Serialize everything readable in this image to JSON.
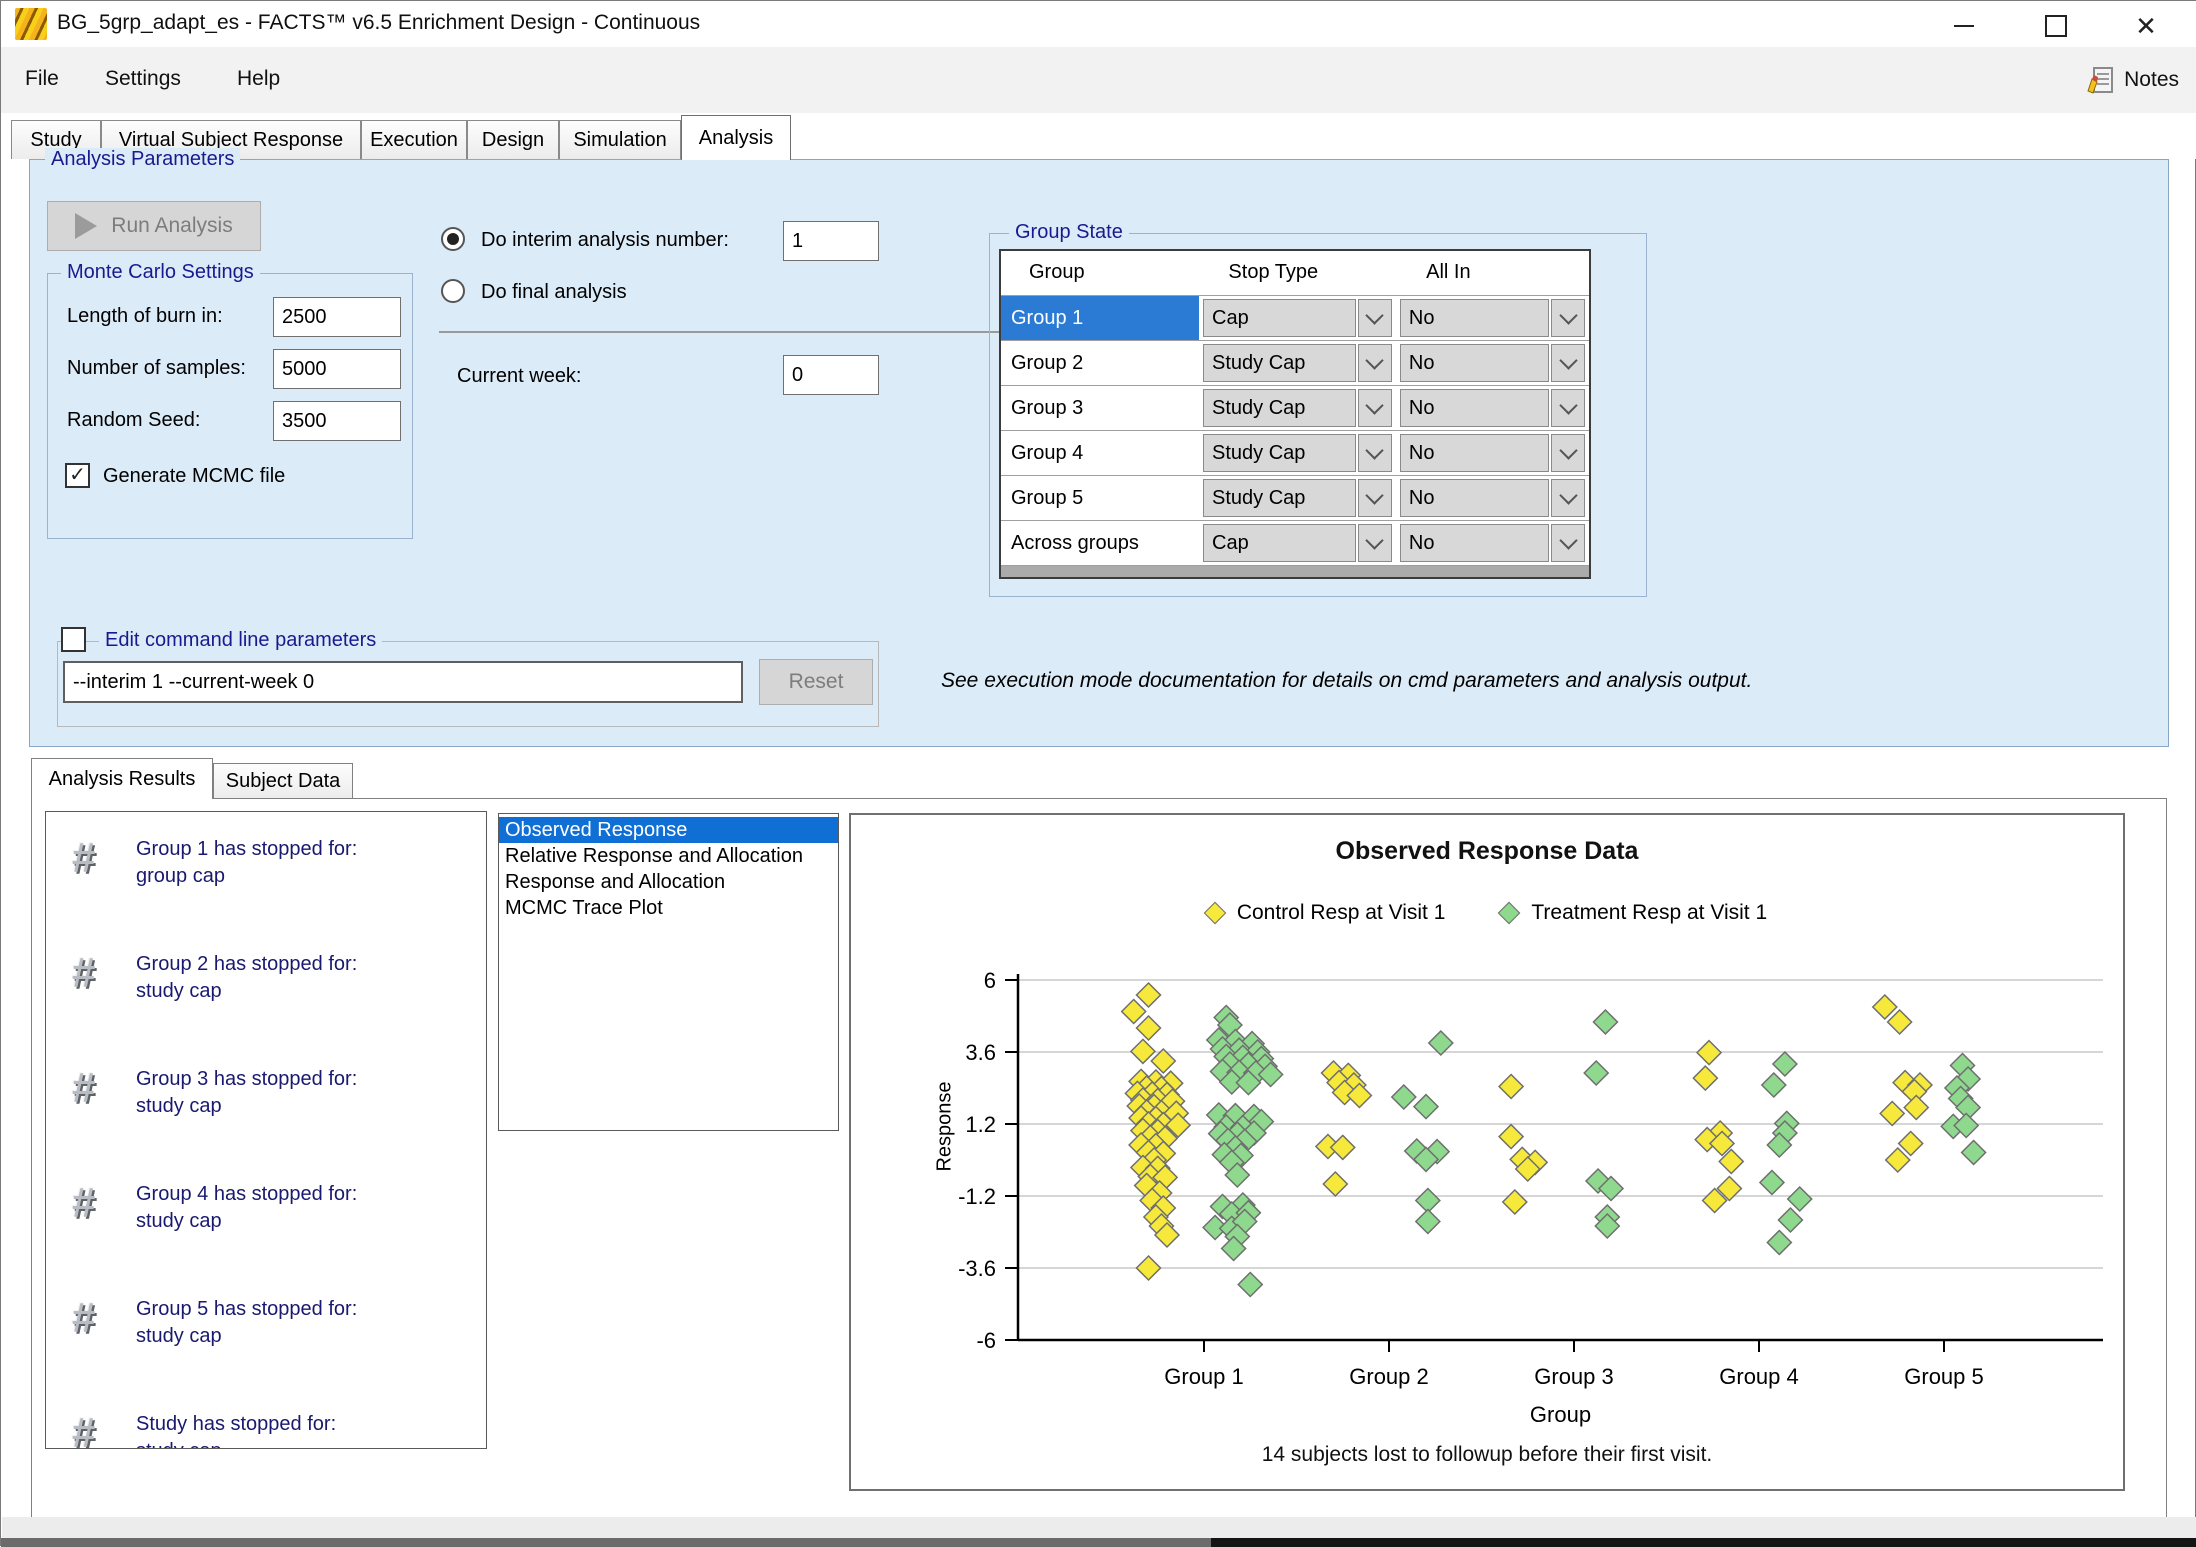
{
  "window": {
    "title": "BG_5grp_adapt_es - FACTS™ v6.5 Enrichment Design - Continuous"
  },
  "menu": {
    "items": [
      "File",
      "Settings",
      "Help"
    ],
    "notes_label": "Notes"
  },
  "tabs": [
    "Study",
    "Virtual Subject Response",
    "Execution",
    "Design",
    "Simulation",
    "Analysis"
  ],
  "analysis_parameters": {
    "caption": "Analysis Parameters",
    "run_button": "Run Analysis",
    "monte_carlo": {
      "caption": "Monte Carlo Settings",
      "burn_in_label": "Length of burn in:",
      "burn_in": "2500",
      "samples_label": "Number of samples:",
      "samples": "5000",
      "seed_label": "Random Seed:",
      "seed": "3500",
      "mcmc_checkbox_label": "Generate MCMC file",
      "mcmc_checked": "true"
    },
    "interim_radio_label": "Do interim analysis number:",
    "interim_value": "1",
    "final_radio_label": "Do final analysis",
    "current_week_label": "Current week:",
    "current_week": "0",
    "group_state": {
      "caption": "Group State",
      "columns": [
        "Group",
        "Stop Type",
        "All In"
      ],
      "rows": [
        {
          "group": "Group 1",
          "stop_type": "Cap",
          "all_in": "No"
        },
        {
          "group": "Group 2",
          "stop_type": "Study Cap",
          "all_in": "No"
        },
        {
          "group": "Group 3",
          "stop_type": "Study Cap",
          "all_in": "No"
        },
        {
          "group": "Group 4",
          "stop_type": "Study Cap",
          "all_in": "No"
        },
        {
          "group": "Group 5",
          "stop_type": "Study Cap",
          "all_in": "No"
        },
        {
          "group": "Across groups",
          "stop_type": "Cap",
          "all_in": "No"
        }
      ],
      "selected_row": "Group 1"
    },
    "cmd": {
      "caption": "Edit command line parameters",
      "value": "--interim 1 --current-week 0",
      "reset_button": "Reset",
      "note": "See execution mode documentation for details on cmd parameters and analysis output."
    }
  },
  "results": {
    "tabs": [
      "Analysis Results",
      "Subject Data"
    ],
    "messages": [
      {
        "line1": "Group 1 has stopped for:",
        "line2": "group cap"
      },
      {
        "line1": "Group 2 has stopped for:",
        "line2": "study cap"
      },
      {
        "line1": "Group 3 has stopped for:",
        "line2": "study cap"
      },
      {
        "line1": "Group 4 has stopped for:",
        "line2": "study cap"
      },
      {
        "line1": "Group 5 has stopped for:",
        "line2": "study cap"
      },
      {
        "line1": "Study has stopped for:",
        "line2": "study cap"
      }
    ],
    "plot_list": [
      "Observed Response",
      "Relative Response and Allocation",
      "Response and Allocation",
      "MCMC Trace Plot"
    ],
    "selected_plot": "Observed Response"
  },
  "chart_data": {
    "type": "scatter",
    "title": "Observed Response Data",
    "xlabel": "Group",
    "ylabel": "Response",
    "ylim": [
      -6,
      6
    ],
    "yticks": [
      6,
      3.6,
      1.2,
      -1.2,
      -3.6,
      -6
    ],
    "categories": [
      "Group 1",
      "Group 2",
      "Group 3",
      "Group 4",
      "Group 5"
    ],
    "grid": true,
    "legend_position": "top",
    "footnote": "14 subjects lost to followup before their first visit.",
    "marker": "diamond",
    "series": [
      {
        "name": "Control Resp at Visit 1",
        "color": "#f6e93c",
        "points": [
          [
            1,
            -0.3,
            5.5
          ],
          [
            1,
            -0.38,
            4.95
          ],
          [
            1,
            -0.3,
            4.4
          ],
          [
            1,
            -0.33,
            3.62
          ],
          [
            1,
            -0.22,
            3.3
          ],
          [
            1,
            -0.34,
            2.62
          ],
          [
            1,
            -0.26,
            2.6
          ],
          [
            1,
            -0.18,
            2.56
          ],
          [
            1,
            -0.31,
            2.4
          ],
          [
            1,
            -0.23,
            2.38
          ],
          [
            1,
            -0.36,
            2.22
          ],
          [
            1,
            -0.28,
            2.2
          ],
          [
            1,
            -0.2,
            2.18
          ],
          [
            1,
            -0.33,
            2.0
          ],
          [
            1,
            -0.25,
            1.98
          ],
          [
            1,
            -0.17,
            1.96
          ],
          [
            1,
            -0.35,
            1.8
          ],
          [
            1,
            -0.27,
            1.78
          ],
          [
            1,
            -0.31,
            1.6
          ],
          [
            1,
            -0.23,
            1.58
          ],
          [
            1,
            -0.15,
            1.56
          ],
          [
            1,
            -0.34,
            1.4
          ],
          [
            1,
            -0.26,
            1.38
          ],
          [
            1,
            -0.3,
            1.2
          ],
          [
            1,
            -0.22,
            1.18
          ],
          [
            1,
            -0.14,
            1.16
          ],
          [
            1,
            -0.33,
            0.98
          ],
          [
            1,
            -0.25,
            0.95
          ],
          [
            1,
            -0.29,
            0.75
          ],
          [
            1,
            -0.21,
            0.72
          ],
          [
            1,
            -0.34,
            0.5
          ],
          [
            1,
            -0.26,
            0.48
          ],
          [
            1,
            -0.3,
            0.25
          ],
          [
            1,
            -0.22,
            0.22
          ],
          [
            1,
            -0.27,
            0.0
          ],
          [
            1,
            -0.33,
            -0.25
          ],
          [
            1,
            -0.25,
            -0.28
          ],
          [
            1,
            -0.29,
            -0.55
          ],
          [
            1,
            -0.21,
            -0.58
          ],
          [
            1,
            -0.31,
            -0.85
          ],
          [
            1,
            -0.24,
            -1.1
          ],
          [
            1,
            -0.28,
            -1.35
          ],
          [
            1,
            -0.22,
            -1.6
          ],
          [
            1,
            -0.26,
            -1.9
          ],
          [
            1,
            -0.23,
            -2.2
          ],
          [
            1,
            -0.2,
            -2.5
          ],
          [
            1,
            -0.3,
            -3.6
          ],
          [
            2,
            -0.3,
            2.9
          ],
          [
            2,
            -0.22,
            2.82
          ],
          [
            2,
            -0.27,
            2.58
          ],
          [
            2,
            -0.19,
            2.5
          ],
          [
            2,
            -0.24,
            2.25
          ],
          [
            2,
            -0.16,
            2.15
          ],
          [
            2,
            -0.33,
            0.45
          ],
          [
            2,
            -0.25,
            0.42
          ],
          [
            2,
            -0.29,
            -0.8
          ],
          [
            3,
            -0.34,
            2.45
          ],
          [
            3,
            -0.34,
            0.78
          ],
          [
            3,
            -0.28,
            0.02
          ],
          [
            3,
            -0.21,
            -0.08
          ],
          [
            3,
            -0.25,
            -0.3
          ],
          [
            3,
            -0.32,
            -1.4
          ],
          [
            4,
            -0.27,
            3.58
          ],
          [
            4,
            -0.29,
            2.73
          ],
          [
            4,
            -0.21,
            0.9
          ],
          [
            4,
            -0.28,
            0.68
          ],
          [
            4,
            -0.2,
            0.55
          ],
          [
            4,
            -0.15,
            -0.05
          ],
          [
            4,
            -0.16,
            -0.95
          ],
          [
            4,
            -0.24,
            -1.35
          ],
          [
            5,
            -0.32,
            5.1
          ],
          [
            5,
            -0.24,
            4.6
          ],
          [
            5,
            -0.21,
            2.58
          ],
          [
            5,
            -0.13,
            2.5
          ],
          [
            5,
            -0.16,
            2.28
          ],
          [
            5,
            -0.28,
            1.55
          ],
          [
            5,
            -0.15,
            1.75
          ],
          [
            5,
            -0.18,
            0.55
          ],
          [
            5,
            -0.25,
            0.0
          ]
        ]
      },
      {
        "name": "Treatment Resp at Visit 1",
        "color": "#8ed98e",
        "points": [
          [
            1,
            0.12,
            4.75
          ],
          [
            1,
            0.14,
            4.5
          ],
          [
            1,
            0.08,
            4.0
          ],
          [
            1,
            0.17,
            3.95
          ],
          [
            1,
            0.26,
            3.88
          ],
          [
            1,
            0.1,
            3.7
          ],
          [
            1,
            0.19,
            3.66
          ],
          [
            1,
            0.29,
            3.6
          ],
          [
            1,
            0.12,
            3.45
          ],
          [
            1,
            0.21,
            3.42
          ],
          [
            1,
            0.31,
            3.38
          ],
          [
            1,
            0.14,
            3.2
          ],
          [
            1,
            0.24,
            3.18
          ],
          [
            1,
            0.33,
            3.12
          ],
          [
            1,
            0.1,
            2.95
          ],
          [
            1,
            0.19,
            2.92
          ],
          [
            1,
            0.28,
            2.9
          ],
          [
            1,
            0.36,
            2.85
          ],
          [
            1,
            0.15,
            2.6
          ],
          [
            1,
            0.24,
            2.58
          ],
          [
            1,
            0.08,
            1.5
          ],
          [
            1,
            0.17,
            1.48
          ],
          [
            1,
            0.27,
            1.45
          ],
          [
            1,
            0.31,
            1.28
          ],
          [
            1,
            0.12,
            1.1
          ],
          [
            1,
            0.21,
            1.08
          ],
          [
            1,
            0.09,
            0.88
          ],
          [
            1,
            0.18,
            0.86
          ],
          [
            1,
            0.27,
            0.9
          ],
          [
            1,
            0.13,
            0.65
          ],
          [
            1,
            0.22,
            0.62
          ],
          [
            1,
            0.17,
            0.4
          ],
          [
            1,
            0.11,
            0.18
          ],
          [
            1,
            0.2,
            0.15
          ],
          [
            1,
            0.15,
            -0.08
          ],
          [
            1,
            0.18,
            -0.5
          ],
          [
            1,
            0.1,
            -1.55
          ],
          [
            1,
            0.21,
            -1.5
          ],
          [
            1,
            0.15,
            -1.8
          ],
          [
            1,
            0.24,
            -1.76
          ],
          [
            1,
            0.06,
            -2.25
          ],
          [
            1,
            0.15,
            -2.28
          ],
          [
            1,
            0.22,
            -2.05
          ],
          [
            1,
            0.18,
            -2.55
          ],
          [
            1,
            0.16,
            -2.95
          ],
          [
            1,
            0.25,
            -4.15
          ],
          [
            2,
            0.28,
            3.9
          ],
          [
            2,
            0.08,
            2.1
          ],
          [
            2,
            0.2,
            1.78
          ],
          [
            2,
            0.15,
            0.3
          ],
          [
            2,
            0.26,
            0.28
          ],
          [
            2,
            0.2,
            0.02
          ],
          [
            2,
            0.21,
            -1.35
          ],
          [
            2,
            0.21,
            -2.05
          ],
          [
            3,
            0.17,
            4.6
          ],
          [
            3,
            0.12,
            2.9
          ],
          [
            3,
            0.13,
            -0.7
          ],
          [
            3,
            0.2,
            -0.95
          ],
          [
            3,
            0.18,
            -1.9
          ],
          [
            3,
            0.18,
            -2.2
          ],
          [
            4,
            0.14,
            3.2
          ],
          [
            4,
            0.08,
            2.5
          ],
          [
            4,
            0.15,
            1.22
          ],
          [
            4,
            0.14,
            0.9
          ],
          [
            4,
            0.11,
            0.5
          ],
          [
            4,
            0.07,
            -0.75
          ],
          [
            4,
            0.22,
            -1.3
          ],
          [
            4,
            0.17,
            -2.0
          ],
          [
            4,
            0.11,
            -2.75
          ],
          [
            5,
            0.1,
            3.15
          ],
          [
            5,
            0.13,
            2.7
          ],
          [
            5,
            0.07,
            2.4
          ],
          [
            5,
            0.09,
            2.05
          ],
          [
            5,
            0.13,
            1.75
          ],
          [
            5,
            0.05,
            1.12
          ],
          [
            5,
            0.12,
            1.15
          ],
          [
            5,
            0.16,
            0.25
          ]
        ]
      }
    ]
  }
}
